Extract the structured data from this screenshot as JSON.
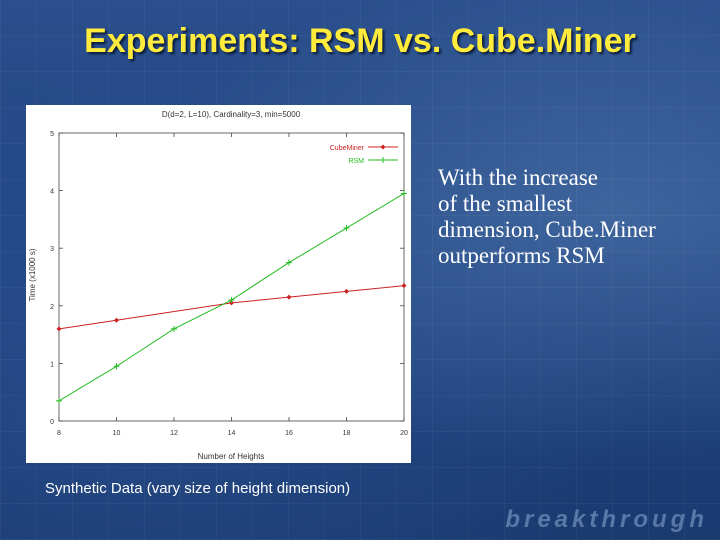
{
  "slide": {
    "title": "Experiments: RSM vs. Cube.Miner",
    "bullet_lines": [
      "With the increase",
      "of the smallest",
      "dimension, Cube.Miner",
      "outperforms RSM"
    ],
    "caption": "Synthetic Data (vary size of height dimension)",
    "brand": "breakthrough"
  },
  "colors": {
    "title": "#ffeb3b",
    "background": "#1f4480",
    "cubeminer": "#cc2222",
    "rsm": "#22bb22"
  },
  "chart_data": {
    "type": "line",
    "title": "D(d=2, L=10), Cardinality=3, min=5000",
    "xlabel": "Number of Heights",
    "ylabel": "Time (x1000 s)",
    "x": [
      8,
      10,
      12,
      14,
      16,
      18,
      20
    ],
    "xlim": [
      8,
      20
    ],
    "ylim": [
      0,
      5
    ],
    "x_ticks": [
      "8",
      "10",
      "12",
      "14",
      "16",
      "18",
      "20"
    ],
    "y_ticks": [
      "0",
      "1",
      "2",
      "3",
      "4",
      "5"
    ],
    "series": [
      {
        "name": "CubeMiner",
        "color": "#cc2222",
        "marker": "diamond",
        "x": [
          8,
          10,
          14,
          16,
          18,
          20
        ],
        "values": [
          1.6,
          1.75,
          2.05,
          2.15,
          2.25,
          2.35
        ]
      },
      {
        "name": "RSM",
        "color": "#22bb22",
        "marker": "plus",
        "x": [
          8,
          10,
          12,
          14,
          16,
          18,
          20
        ],
        "values": [
          0.35,
          0.95,
          1.6,
          2.1,
          2.75,
          3.35,
          3.95
        ]
      }
    ],
    "legend_position": "top-right",
    "grid": false
  }
}
